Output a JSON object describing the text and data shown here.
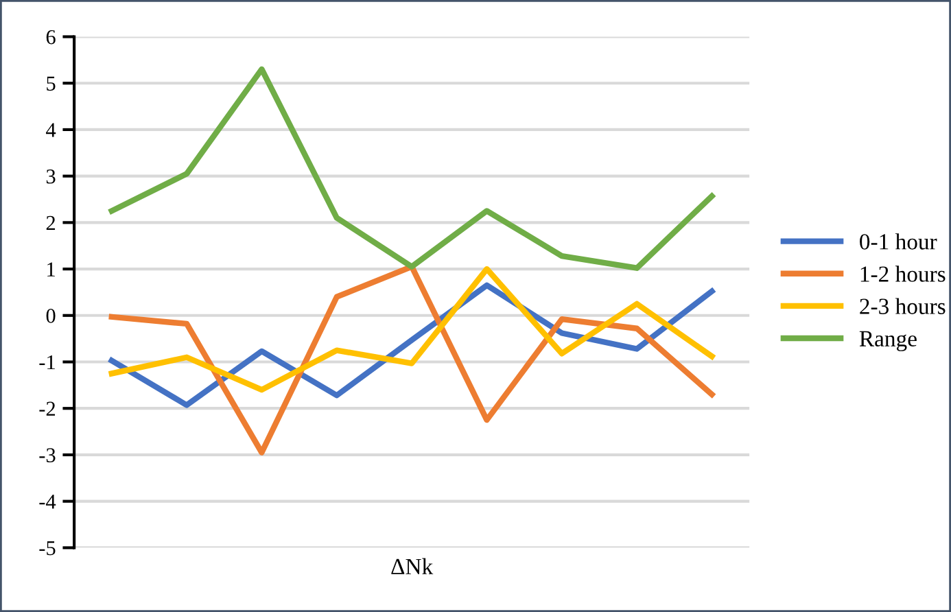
{
  "chart_data": {
    "type": "line",
    "xlabel": "ΔNk",
    "categories": [
      null,
      null,
      null,
      null,
      null,
      null,
      null,
      null,
      null
    ],
    "series": [
      {
        "name": "0-1 hour",
        "color": "#4472c4",
        "values": [
          -0.97,
          -1.93,
          -0.77,
          -1.72,
          -0.53,
          0.65,
          -0.38,
          -0.72,
          0.52
        ]
      },
      {
        "name": "1-2 hours",
        "color": "#ed7d31",
        "values": [
          -0.03,
          -0.18,
          -2.95,
          0.4,
          1.05,
          -2.25,
          -0.08,
          -0.28,
          -1.7
        ]
      },
      {
        "name": "2-3 hours",
        "color": "#ffc000",
        "values": [
          -1.25,
          -0.9,
          -1.6,
          -0.75,
          -1.03,
          1.0,
          -0.82,
          0.25,
          -0.88
        ]
      },
      {
        "name": "Range",
        "color": "#70ad47",
        "values": [
          2.25,
          3.05,
          5.3,
          2.1,
          1.05,
          2.25,
          1.28,
          1.02,
          2.57
        ]
      }
    ],
    "ylim": [
      -5,
      6
    ],
    "yticks": [
      -5,
      -4,
      -3,
      -2,
      -1,
      0,
      1,
      2,
      3,
      4,
      5,
      6
    ],
    "grid": "y",
    "legend": "right",
    "marker": "none",
    "line_style": "solid"
  }
}
